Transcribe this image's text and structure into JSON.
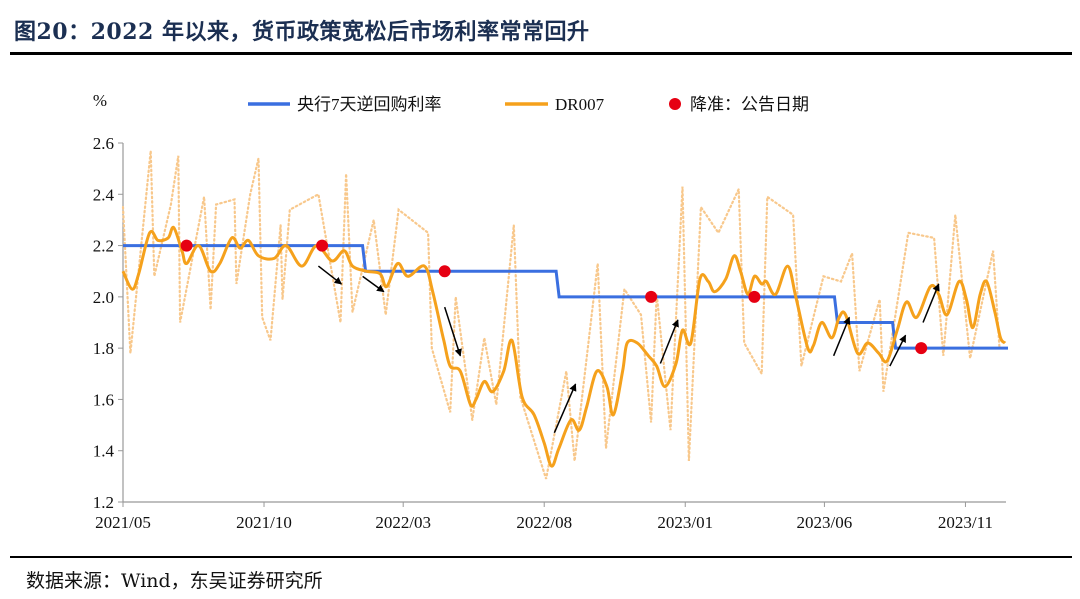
{
  "title": "图20：2022 年以来，货币政策宽松后市场利率常常回升",
  "source": "数据来源：Wind，东吴证券研究所",
  "chart_data": {
    "type": "line",
    "ylabel": "%",
    "ylim": [
      1.2,
      2.6
    ],
    "yticks": [
      "2.6",
      "2.4",
      "2.2",
      "2.0",
      "1.8",
      "1.6",
      "1.4",
      "1.2"
    ],
    "xlim": [
      "2021-05-01",
      "2023-12-15"
    ],
    "xticks": [
      {
        "date": "2021-05-01",
        "label": "2021/05"
      },
      {
        "date": "2021-10-01",
        "label": "2021/10"
      },
      {
        "date": "2022-03-01",
        "label": "2022/03"
      },
      {
        "date": "2022-08-01",
        "label": "2022/08"
      },
      {
        "date": "2023-01-01",
        "label": "2023/01"
      },
      {
        "date": "2023-06-01",
        "label": "2023/06"
      },
      {
        "date": "2023-11-01",
        "label": "2023/11"
      }
    ],
    "grid": false,
    "legend_position": "top",
    "legend": [
      "央行7天逆回购利率",
      "DR007",
      "降准：公告日期"
    ],
    "colors": {
      "policy": "#3a6fe0",
      "dr007": "#f5a11c",
      "dr007_daily": "#f8c88c",
      "rrr": "#e60012",
      "arrow": "#000000"
    },
    "series": [
      {
        "name": "央行7天逆回购利率",
        "style": "step",
        "points": [
          [
            "2021-05-01",
            2.2
          ],
          [
            "2022-01-17",
            2.1
          ],
          [
            "2022-08-15",
            2.0
          ],
          [
            "2023-06-13",
            1.9
          ],
          [
            "2023-08-15",
            1.8
          ],
          [
            "2023-12-15",
            1.8
          ]
        ]
      },
      {
        "name": "DR007",
        "style": "smoothed",
        "points": [
          [
            "2021-05-01",
            2.1
          ],
          [
            "2021-05-11",
            2.03
          ],
          [
            "2021-05-18",
            2.09
          ],
          [
            "2021-05-30",
            2.25
          ],
          [
            "2021-06-08",
            2.22
          ],
          [
            "2021-06-19",
            2.23
          ],
          [
            "2021-06-25",
            2.27
          ],
          [
            "2021-07-04",
            2.18
          ],
          [
            "2021-07-09",
            2.13
          ],
          [
            "2021-07-22",
            2.2
          ],
          [
            "2021-08-04",
            2.1
          ],
          [
            "2021-08-14",
            2.13
          ],
          [
            "2021-08-27",
            2.23
          ],
          [
            "2021-09-05",
            2.19
          ],
          [
            "2021-09-14",
            2.22
          ],
          [
            "2021-09-25",
            2.16
          ],
          [
            "2021-10-12",
            2.15
          ],
          [
            "2021-10-25",
            2.2
          ],
          [
            "2021-11-11",
            2.12
          ],
          [
            "2021-11-27",
            2.2
          ],
          [
            "2021-12-14",
            2.14
          ],
          [
            "2021-12-27",
            2.18
          ],
          [
            "2022-01-05",
            2.12
          ],
          [
            "2022-01-20",
            2.1
          ],
          [
            "2022-02-04",
            2.09
          ],
          [
            "2022-02-11",
            2.04
          ],
          [
            "2022-02-23",
            2.13
          ],
          [
            "2022-03-06",
            2.08
          ],
          [
            "2022-03-24",
            2.12
          ],
          [
            "2022-04-02",
            2.02
          ],
          [
            "2022-04-14",
            1.83
          ],
          [
            "2022-04-21",
            1.73
          ],
          [
            "2022-05-02",
            1.71
          ],
          [
            "2022-05-13",
            1.58
          ],
          [
            "2022-05-19",
            1.6
          ],
          [
            "2022-05-28",
            1.67
          ],
          [
            "2022-06-06",
            1.63
          ],
          [
            "2022-06-18",
            1.71
          ],
          [
            "2022-06-27",
            1.83
          ],
          [
            "2022-07-08",
            1.61
          ],
          [
            "2022-07-21",
            1.54
          ],
          [
            "2022-08-01",
            1.43
          ],
          [
            "2022-08-09",
            1.34
          ],
          [
            "2022-08-17",
            1.41
          ],
          [
            "2022-08-30",
            1.52
          ],
          [
            "2022-09-08",
            1.48
          ],
          [
            "2022-09-16",
            1.57
          ],
          [
            "2022-09-27",
            1.71
          ],
          [
            "2022-10-08",
            1.65
          ],
          [
            "2022-10-15",
            1.54
          ],
          [
            "2022-10-25",
            1.71
          ],
          [
            "2022-10-30",
            1.82
          ],
          [
            "2022-11-10",
            1.82
          ],
          [
            "2022-11-22",
            1.77
          ],
          [
            "2022-12-01",
            1.73
          ],
          [
            "2022-12-10",
            1.65
          ],
          [
            "2022-12-22",
            1.74
          ],
          [
            "2022-12-29",
            1.87
          ],
          [
            "2023-01-07",
            1.82
          ],
          [
            "2023-01-17",
            2.07
          ],
          [
            "2023-01-26",
            2.06
          ],
          [
            "2023-02-02",
            2.02
          ],
          [
            "2023-02-14",
            2.07
          ],
          [
            "2023-02-23",
            2.16
          ],
          [
            "2023-03-02",
            2.1
          ],
          [
            "2023-03-10",
            2.01
          ],
          [
            "2023-03-17",
            2.08
          ],
          [
            "2023-03-25",
            2.05
          ],
          [
            "2023-03-30",
            2.06
          ],
          [
            "2023-04-09",
            2.01
          ],
          [
            "2023-04-22",
            2.12
          ],
          [
            "2023-05-01",
            2.0
          ],
          [
            "2023-05-14",
            1.8
          ],
          [
            "2023-05-20",
            1.81
          ],
          [
            "2023-05-29",
            1.9
          ],
          [
            "2023-06-09",
            1.84
          ],
          [
            "2023-06-17",
            1.92
          ],
          [
            "2023-06-24",
            1.93
          ],
          [
            "2023-07-07",
            1.78
          ],
          [
            "2023-07-18",
            1.82
          ],
          [
            "2023-07-30",
            1.78
          ],
          [
            "2023-08-08",
            1.75
          ],
          [
            "2023-08-19",
            1.87
          ],
          [
            "2023-08-29",
            1.98
          ],
          [
            "2023-09-09",
            1.92
          ],
          [
            "2023-09-24",
            2.04
          ],
          [
            "2023-10-03",
            2.01
          ],
          [
            "2023-10-12",
            1.93
          ],
          [
            "2023-10-25",
            2.06
          ],
          [
            "2023-11-02",
            1.99
          ],
          [
            "2023-11-09",
            1.88
          ],
          [
            "2023-11-17",
            2.01
          ],
          [
            "2023-11-24",
            2.06
          ],
          [
            "2023-12-03",
            1.94
          ],
          [
            "2023-12-09",
            1.84
          ],
          [
            "2023-12-14",
            1.82
          ]
        ]
      },
      {
        "name": "DR007",
        "style": "daily-dotted",
        "points": [
          [
            "2021-05-01",
            2.35
          ],
          [
            "2021-05-09",
            1.78
          ],
          [
            "2021-05-31",
            2.57
          ],
          [
            "2021-06-04",
            2.08
          ],
          [
            "2021-06-22",
            2.36
          ],
          [
            "2021-06-30",
            2.55
          ],
          [
            "2021-07-02",
            1.9
          ],
          [
            "2021-07-28",
            2.39
          ],
          [
            "2021-08-04",
            1.95
          ],
          [
            "2021-08-10",
            2.36
          ],
          [
            "2021-08-30",
            2.38
          ],
          [
            "2021-09-01",
            2.05
          ],
          [
            "2021-09-16",
            2.4
          ],
          [
            "2021-09-25",
            2.54
          ],
          [
            "2021-09-29",
            1.92
          ],
          [
            "2021-10-08",
            1.83
          ],
          [
            "2021-10-19",
            2.28
          ],
          [
            "2021-10-21",
            1.99
          ],
          [
            "2021-10-29",
            2.34
          ],
          [
            "2021-11-29",
            2.4
          ],
          [
            "2021-12-23",
            1.9
          ],
          [
            "2021-12-29",
            2.48
          ],
          [
            "2022-01-05",
            1.94
          ],
          [
            "2022-01-28",
            2.3
          ],
          [
            "2022-02-10",
            1.93
          ],
          [
            "2022-02-24",
            2.34
          ],
          [
            "2022-03-28",
            2.25
          ],
          [
            "2022-04-01",
            1.8
          ],
          [
            "2022-04-21",
            1.55
          ],
          [
            "2022-04-27",
            2.0
          ],
          [
            "2022-05-15",
            1.52
          ],
          [
            "2022-05-28",
            1.84
          ],
          [
            "2022-06-10",
            1.58
          ],
          [
            "2022-06-29",
            2.28
          ],
          [
            "2022-07-06",
            1.61
          ],
          [
            "2022-08-03",
            1.29
          ],
          [
            "2022-08-25",
            1.71
          ],
          [
            "2022-09-03",
            1.36
          ],
          [
            "2022-09-28",
            2.13
          ],
          [
            "2022-10-07",
            1.41
          ],
          [
            "2022-10-27",
            2.03
          ],
          [
            "2022-11-14",
            1.93
          ],
          [
            "2022-11-25",
            1.51
          ],
          [
            "2022-12-01",
            2.01
          ],
          [
            "2022-12-16",
            1.48
          ],
          [
            "2022-12-29",
            2.43
          ],
          [
            "2023-01-05",
            1.36
          ],
          [
            "2023-01-18",
            2.35
          ],
          [
            "2023-02-06",
            2.25
          ],
          [
            "2023-02-28",
            2.42
          ],
          [
            "2023-03-06",
            1.82
          ],
          [
            "2023-03-25",
            1.7
          ],
          [
            "2023-03-31",
            2.39
          ],
          [
            "2023-04-28",
            2.32
          ],
          [
            "2023-05-07",
            1.73
          ],
          [
            "2023-05-31",
            2.08
          ],
          [
            "2023-06-19",
            2.06
          ],
          [
            "2023-07-01",
            2.17
          ],
          [
            "2023-07-09",
            1.71
          ],
          [
            "2023-07-31",
            1.99
          ],
          [
            "2023-08-04",
            1.63
          ],
          [
            "2023-08-31",
            2.25
          ],
          [
            "2023-09-28",
            2.23
          ],
          [
            "2023-10-08",
            1.77
          ],
          [
            "2023-10-21",
            2.32
          ],
          [
            "2023-11-06",
            1.76
          ],
          [
            "2023-12-01",
            2.18
          ],
          [
            "2023-12-08",
            1.8
          ]
        ]
      },
      {
        "name": "降准：公告日期",
        "style": "markers",
        "points": [
          [
            "2021-07-09",
            2.2
          ],
          [
            "2021-12-03",
            2.2
          ],
          [
            "2022-04-15",
            2.1
          ],
          [
            "2022-11-25",
            2.0
          ],
          [
            "2023-03-17",
            2.0
          ],
          [
            "2023-09-14",
            1.8
          ]
        ]
      }
    ],
    "annotations": {
      "arrows": [
        {
          "from": [
            "2021-11-29",
            2.12
          ],
          "to": [
            "2021-12-24",
            2.05
          ]
        },
        {
          "from": [
            "2022-01-16",
            2.08
          ],
          "to": [
            "2022-02-08",
            2.02
          ]
        },
        {
          "from": [
            "2022-04-15",
            1.96
          ],
          "to": [
            "2022-05-02",
            1.77
          ]
        },
        {
          "from": [
            "2022-08-12",
            1.47
          ],
          "to": [
            "2022-09-04",
            1.66
          ]
        },
        {
          "from": [
            "2022-12-05",
            1.74
          ],
          "to": [
            "2022-12-24",
            1.91
          ]
        },
        {
          "from": [
            "2023-06-11",
            1.77
          ],
          "to": [
            "2023-06-28",
            1.92
          ]
        },
        {
          "from": [
            "2023-08-11",
            1.73
          ],
          "to": [
            "2023-08-28",
            1.85
          ]
        },
        {
          "from": [
            "2023-09-16",
            1.9
          ],
          "to": [
            "2023-10-03",
            2.05
          ]
        }
      ]
    }
  }
}
